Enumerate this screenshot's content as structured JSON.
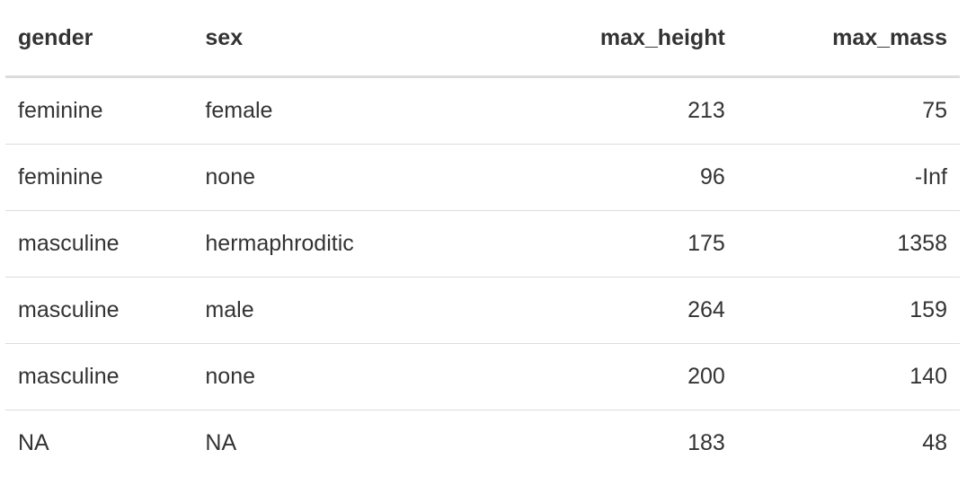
{
  "table": {
    "columns": [
      {
        "label": "gender",
        "align": "left"
      },
      {
        "label": "sex",
        "align": "left"
      },
      {
        "label": "max_height",
        "align": "right"
      },
      {
        "label": "max_mass",
        "align": "right"
      }
    ],
    "rows": [
      [
        "feminine",
        "female",
        "213",
        "75"
      ],
      [
        "feminine",
        "none",
        "96",
        "-Inf"
      ],
      [
        "masculine",
        "hermaphroditic",
        "175",
        "1358"
      ],
      [
        "masculine",
        "male",
        "264",
        "159"
      ],
      [
        "masculine",
        "none",
        "200",
        "140"
      ],
      [
        "NA",
        "NA",
        "183",
        "48"
      ]
    ]
  }
}
